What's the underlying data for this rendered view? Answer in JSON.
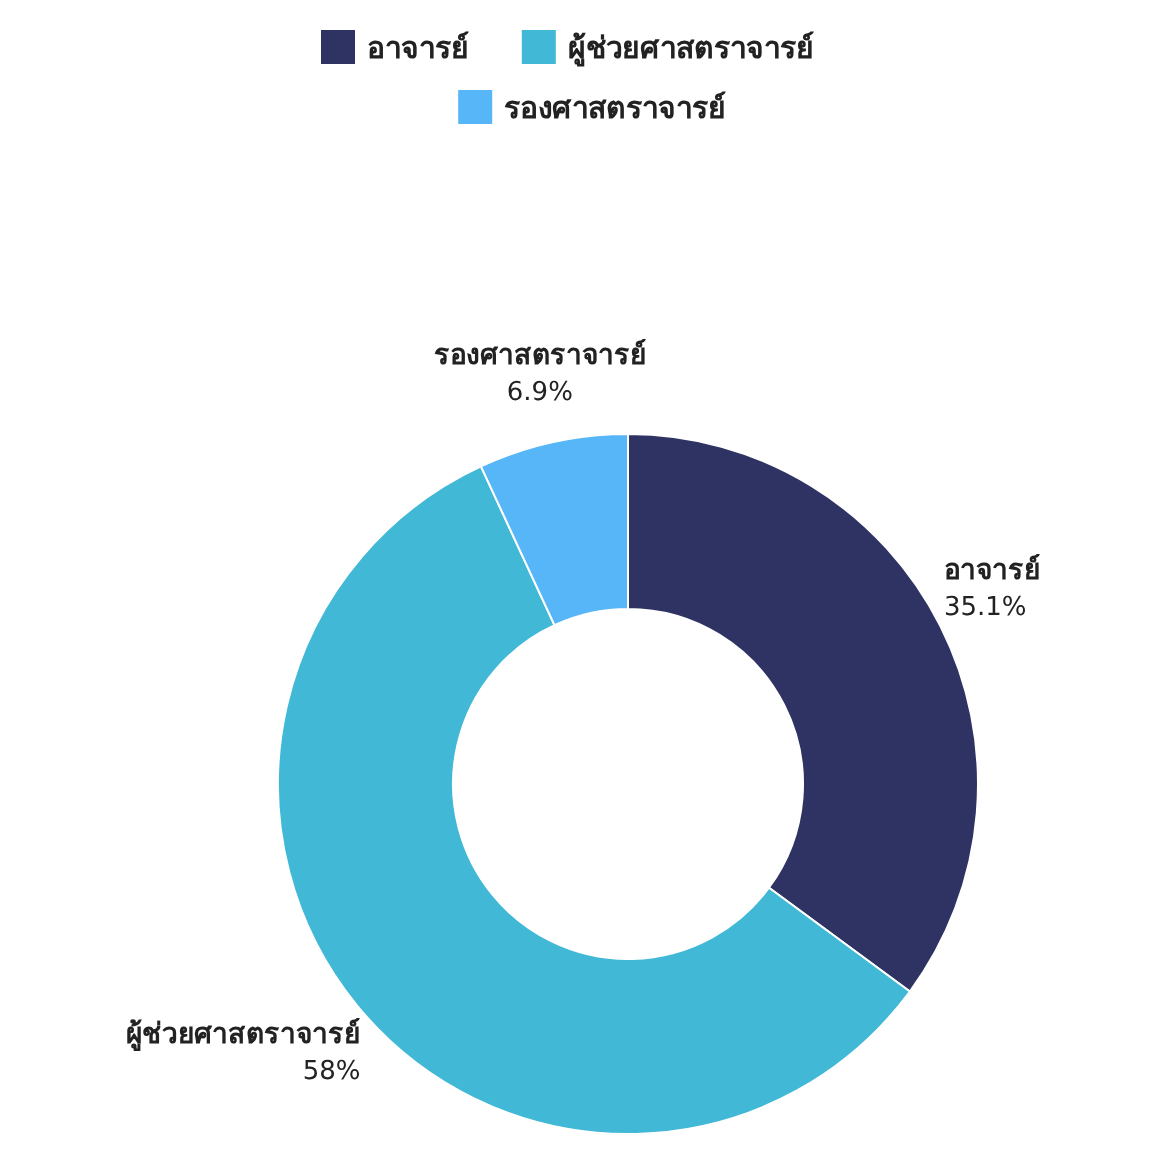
{
  "chart_data": {
    "type": "donut",
    "categories": [
      "อาจารย์",
      "ผู้ช่วยศาสตราจารย์",
      "รองศาสตราจารย์"
    ],
    "values": [
      35.1,
      58,
      6.9
    ],
    "value_labels": [
      "35.1%",
      "58%",
      "6.9%"
    ],
    "colors": [
      "#2e3364",
      "#40b8d6",
      "#57b6f7"
    ],
    "legend": "top"
  }
}
